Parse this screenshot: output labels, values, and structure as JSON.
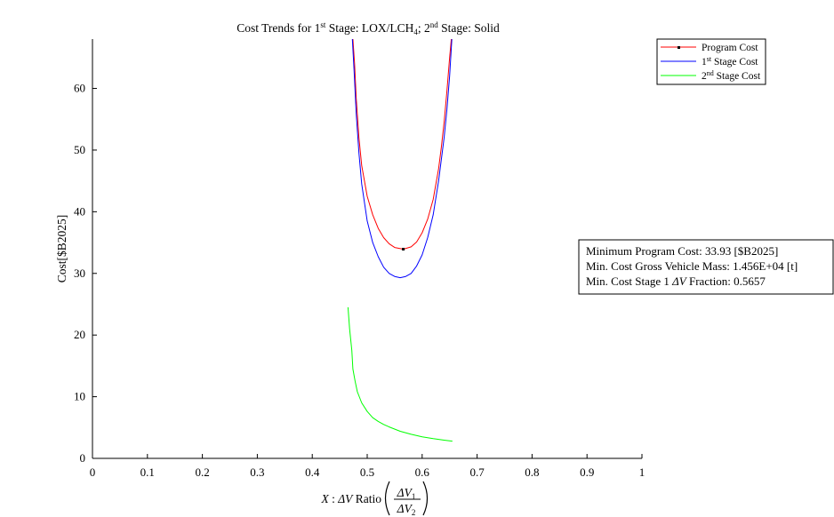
{
  "chart_data": {
    "type": "line",
    "title": {
      "prefix": "Cost Trends for 1",
      "sup1": "st",
      "mid1": " Stage: LOX/LCH",
      "sub": "4",
      "mid2": "; 2",
      "sup2": "nd",
      "suffix": " Stage: Solid"
    },
    "xlabel": {
      "x_sym": "X",
      "sep": " : ",
      "delta_v": "ΔV",
      "ratio_word": " Ratio ",
      "num": "ΔV",
      "num_sub": "1",
      "den": "ΔV",
      "den_sub": "2"
    },
    "ylabel": "Cost[$B2025]",
    "xlim": [
      0,
      1
    ],
    "ylim": [
      0,
      68
    ],
    "x_ticks": [
      0,
      0.1,
      0.2,
      0.3,
      0.4,
      0.5,
      0.6,
      0.7,
      0.8,
      0.9,
      1
    ],
    "x_tick_labels": [
      "0",
      "0.1",
      "0.2",
      "0.3",
      "0.4",
      "0.5",
      "0.6",
      "0.7",
      "0.8",
      "0.9",
      "1"
    ],
    "y_ticks": [
      0,
      10,
      20,
      30,
      40,
      50,
      60
    ],
    "y_tick_labels": [
      "0",
      "10",
      "20",
      "30",
      "40",
      "50",
      "60"
    ],
    "grid": false,
    "legend_position": "top-right",
    "series": [
      {
        "name": "Program Cost",
        "name_parts": {
          "main": "Program Cost",
          "sup": "",
          "rest": ""
        },
        "color": "#ff0000",
        "x": [
          0.474,
          0.477,
          0.48,
          0.485,
          0.49,
          0.5,
          0.51,
          0.52,
          0.53,
          0.54,
          0.55,
          0.5657,
          0.58,
          0.59,
          0.6,
          0.61,
          0.62,
          0.63,
          0.635,
          0.64,
          0.645,
          0.65,
          0.653
        ],
        "y": [
          68,
          64,
          58.5,
          52,
          47.5,
          42.5,
          39.5,
          37.3,
          35.8,
          34.8,
          34.2,
          33.93,
          34.3,
          35.1,
          36.6,
          38.8,
          42,
          47,
          50.5,
          54.5,
          59.5,
          65,
          68
        ]
      },
      {
        "name": "1st Stage Cost",
        "name_parts": {
          "main": "1",
          "sup": "st",
          "rest": " Stage Cost"
        },
        "color": "#0000ff",
        "x": [
          0.473,
          0.476,
          0.48,
          0.485,
          0.49,
          0.5,
          0.51,
          0.52,
          0.53,
          0.54,
          0.55,
          0.56,
          0.57,
          0.58,
          0.59,
          0.6,
          0.61,
          0.62,
          0.63,
          0.64,
          0.645,
          0.65,
          0.654
        ],
        "y": [
          68,
          63,
          56,
          49.5,
          44.5,
          38.5,
          35,
          32.7,
          31,
          30,
          29.5,
          29.3,
          29.5,
          30,
          31.2,
          33,
          35.8,
          39.5,
          45,
          52,
          56.5,
          62,
          68
        ]
      },
      {
        "name": "2nd Stage Cost",
        "name_parts": {
          "main": "2",
          "sup": "nd",
          "rest": " Stage Cost"
        },
        "color": "#00ff00",
        "x": [
          0.465,
          0.468,
          0.472,
          0.474,
          0.478,
          0.482,
          0.49,
          0.5,
          0.51,
          0.52,
          0.53,
          0.54,
          0.56,
          0.58,
          0.6,
          0.62,
          0.64,
          0.655
        ],
        "y": [
          24.5,
          21,
          17.5,
          14.5,
          12.5,
          10.8,
          9,
          7.6,
          6.6,
          6,
          5.5,
          5.1,
          4.4,
          3.9,
          3.5,
          3.2,
          2.95,
          2.8
        ]
      }
    ],
    "minimum_marker": {
      "x": 0.5657,
      "y": 33.93
    },
    "annotation": {
      "line1": "Minimum Program Cost: 33.93 [$B2025]",
      "line2": "Min. Cost Gross Vehicle Mass: 1.456E+04 [t]",
      "line3_prefix": "Min. Cost Stage 1 ",
      "line3_dv": "ΔV",
      "line3_suffix": " Fraction: 0.5657"
    }
  }
}
